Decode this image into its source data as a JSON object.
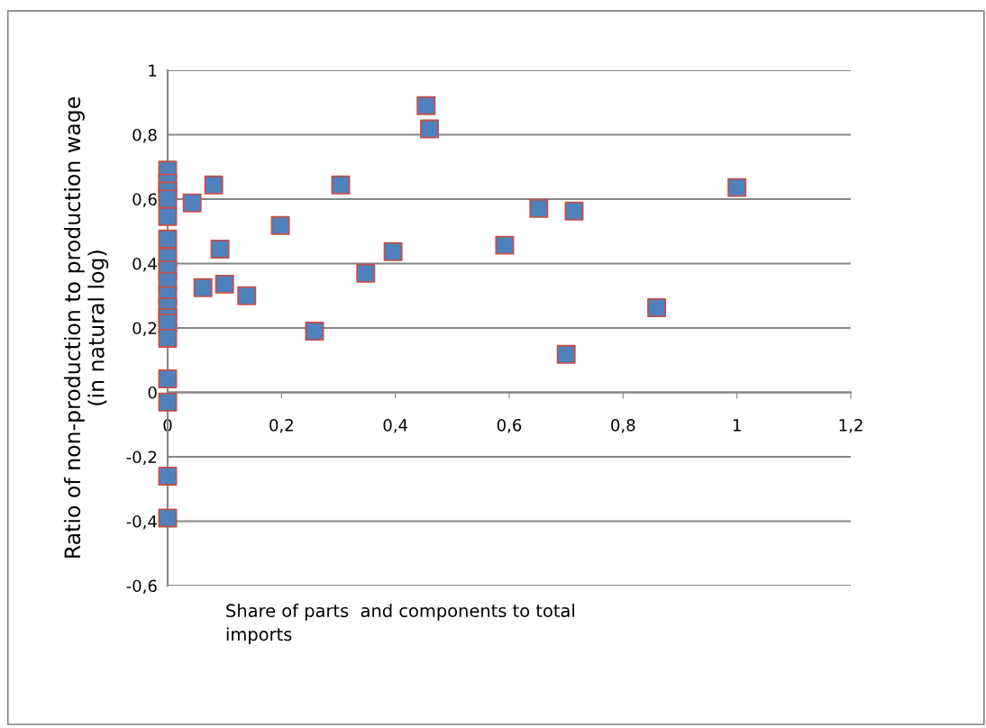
{
  "chart_data": {
    "type": "scatter",
    "xlabel": "Share of parts  and components to total\nimports",
    "ylabel": "Ratio of non-production to production wage\n(in natural log)",
    "series": [
      {
        "color": "#4f81bd",
        "x": [
          0,
          0,
          0,
          0,
          0,
          0,
          0,
          0,
          0,
          0,
          0,
          0,
          0,
          0,
          0,
          0,
          0,
          0,
          0.454,
          0.46,
          0.043,
          0.081,
          0.062,
          0.092,
          0.1,
          0.139,
          0.198,
          0.258,
          0.304,
          0.348,
          0.396,
          0.592,
          0.652,
          0.714,
          0.7,
          0.859,
          1.0
        ],
        "values": [
          0.69,
          0.65,
          0.625,
          0.6,
          0.546,
          0.476,
          0.42,
          0.38,
          0.345,
          0.3,
          0.266,
          0.232,
          0.215,
          0.168,
          0.042,
          -0.03,
          -0.26,
          -0.39,
          0.89,
          0.818,
          0.588,
          0.644,
          0.325,
          0.445,
          0.336,
          0.3,
          0.518,
          0.19,
          0.644,
          0.37,
          0.437,
          0.457,
          0.571,
          0.563,
          0.118,
          0.263,
          0.636
        ]
      }
    ],
    "marker": "square",
    "xlim": [
      0,
      1.2
    ],
    "xticks": [
      0,
      {
        "value": 0.2,
        "label": "0,2"
      },
      {
        "value": 0.4,
        "label": "0,4"
      },
      {
        "value": 0.6,
        "label": "0,6"
      },
      {
        "value": 0.8,
        "label": "0,8"
      },
      1,
      {
        "value": 1.2,
        "label": "1,2"
      }
    ],
    "ylim": [
      -0.6,
      1
    ],
    "yticks": [
      {
        "value": -0.6,
        "label": "-0,6"
      },
      {
        "value": -0.4,
        "label": "-0,4"
      },
      {
        "value": -0.2,
        "label": "-0,2"
      },
      0,
      {
        "value": 0.2,
        "label": "0,2"
      },
      {
        "value": 0.4,
        "label": "0,4"
      },
      {
        "value": 0.6,
        "label": "0,6"
      },
      {
        "value": 0.8,
        "label": "0,8"
      },
      1
    ],
    "grid": "y"
  }
}
